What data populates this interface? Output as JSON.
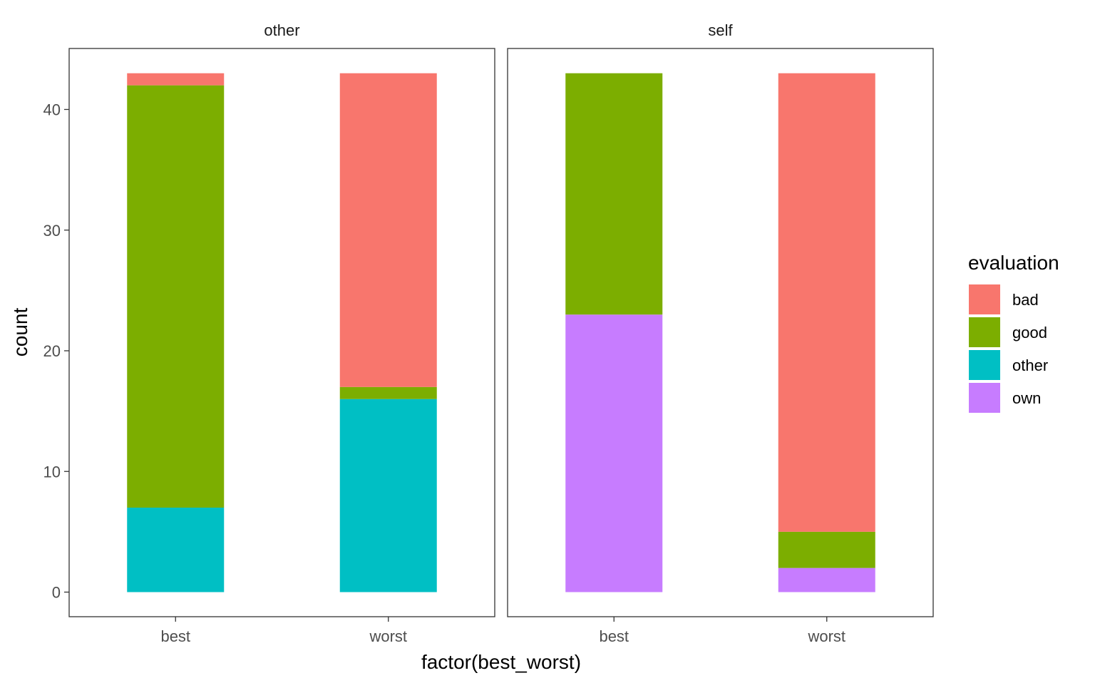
{
  "chart_data": {
    "type": "bar",
    "stacked": true,
    "facet_var": "",
    "facets": [
      {
        "name": "other",
        "categories": [
          "best",
          "worst"
        ],
        "series": [
          {
            "name": "bad",
            "values": [
              1,
              26
            ]
          },
          {
            "name": "good",
            "values": [
              35,
              1
            ]
          },
          {
            "name": "other",
            "values": [
              7,
              16
            ]
          },
          {
            "name": "own",
            "values": [
              0,
              0
            ]
          }
        ]
      },
      {
        "name": "self",
        "categories": [
          "best",
          "worst"
        ],
        "series": [
          {
            "name": "bad",
            "values": [
              0,
              38
            ]
          },
          {
            "name": "good",
            "values": [
              20,
              3
            ]
          },
          {
            "name": "other",
            "values": [
              0,
              0
            ]
          },
          {
            "name": "own",
            "values": [
              23,
              2
            ]
          }
        ]
      }
    ],
    "xlabel": "factor(best_worst)",
    "ylabel": "count",
    "ylim": [
      0,
      45
    ],
    "yticks": [
      0,
      10,
      20,
      30,
      40
    ],
    "grid": false,
    "legend": {
      "title": "evaluation",
      "placement": "right",
      "entries": [
        "bad",
        "good",
        "other",
        "own"
      ]
    },
    "colors": {
      "bad": "#F8766D",
      "good": "#7CAE00",
      "other": "#00BFC4",
      "own": "#C77CFF"
    }
  }
}
